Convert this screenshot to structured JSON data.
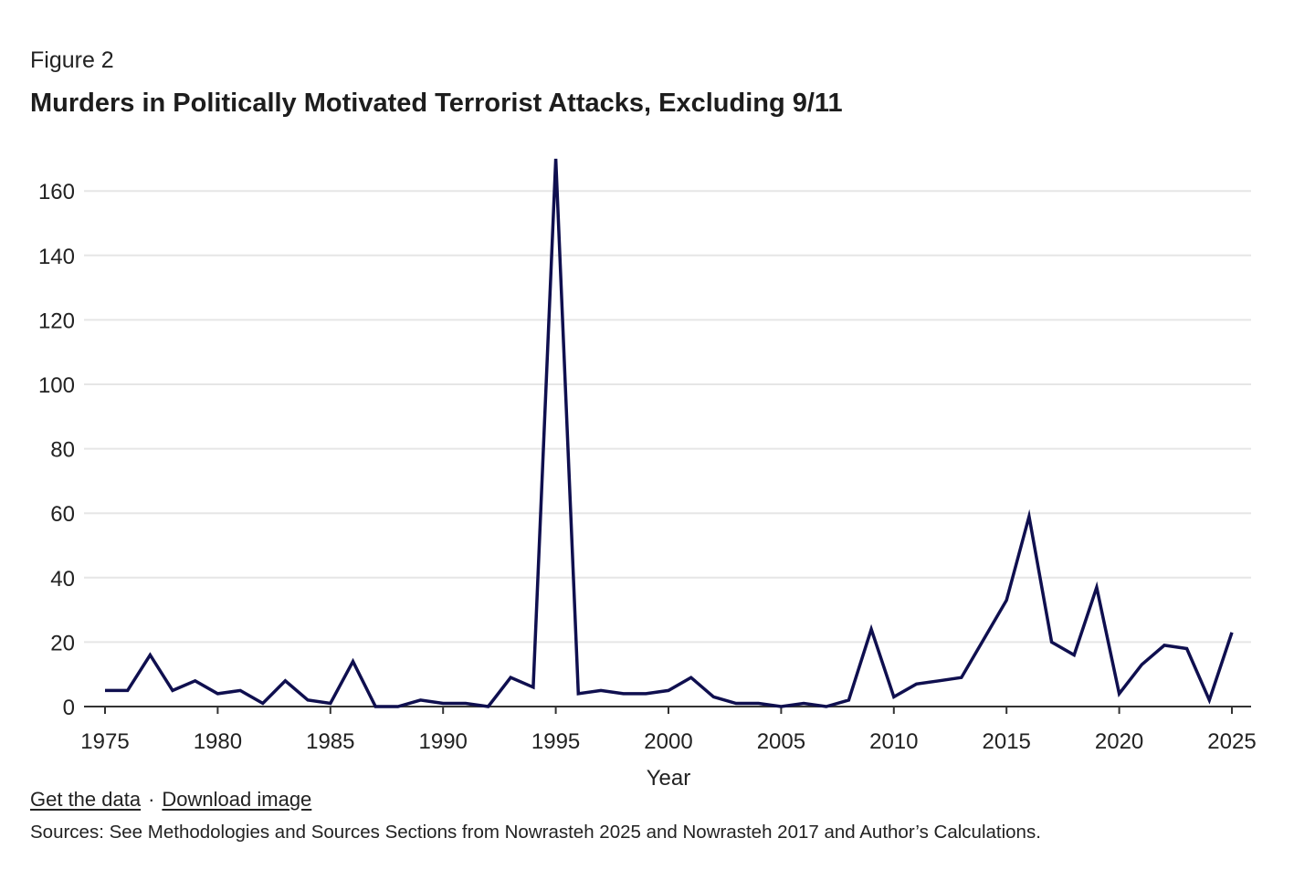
{
  "figure_label": "Figure 2",
  "title": "Murders in Politically Motivated Terrorist Attacks, Excluding 9/11",
  "links": {
    "get_data": "Get the data",
    "separator": "·",
    "download": "Download image"
  },
  "sources": "Sources: See Methodologies and Sources Sections from Nowrasteh 2025 and Nowrasteh 2017 and Author’s Calculations.",
  "colors": {
    "line": "#0f0f4f",
    "grid": "#e6e6e6",
    "axis": "#333333"
  },
  "chart_data": {
    "type": "line",
    "title": "Murders in Politically Motivated Terrorist Attacks, Excluding 9/11",
    "xlabel": "Year",
    "ylabel": "",
    "xlim": [
      1975,
      2025
    ],
    "ylim": [
      0,
      170
    ],
    "grid": true,
    "legend": "none",
    "x_ticks": [
      1975,
      1980,
      1985,
      1990,
      1995,
      2000,
      2005,
      2010,
      2015,
      2020,
      2025
    ],
    "y_ticks": [
      0,
      20,
      40,
      60,
      80,
      100,
      120,
      140,
      160
    ],
    "series": [
      {
        "name": "Murders",
        "x": [
          1975,
          1976,
          1977,
          1978,
          1979,
          1980,
          1981,
          1982,
          1983,
          1984,
          1985,
          1986,
          1987,
          1988,
          1989,
          1990,
          1991,
          1992,
          1993,
          1994,
          1995,
          1996,
          1997,
          1998,
          1999,
          2000,
          2001,
          2002,
          2003,
          2004,
          2005,
          2006,
          2007,
          2008,
          2009,
          2010,
          2011,
          2012,
          2013,
          2014,
          2015,
          2016,
          2017,
          2018,
          2019,
          2020,
          2021,
          2022,
          2023,
          2024,
          2025
        ],
        "values": [
          5,
          5,
          16,
          5,
          8,
          4,
          5,
          1,
          8,
          2,
          1,
          14,
          0,
          0,
          2,
          1,
          1,
          0,
          9,
          6,
          170,
          4,
          5,
          4,
          4,
          5,
          9,
          3,
          1,
          1,
          0,
          1,
          0,
          2,
          24,
          3,
          7,
          8,
          9,
          21,
          33,
          59,
          20,
          16,
          37,
          4,
          13,
          19,
          18,
          2,
          23
        ]
      }
    ]
  }
}
